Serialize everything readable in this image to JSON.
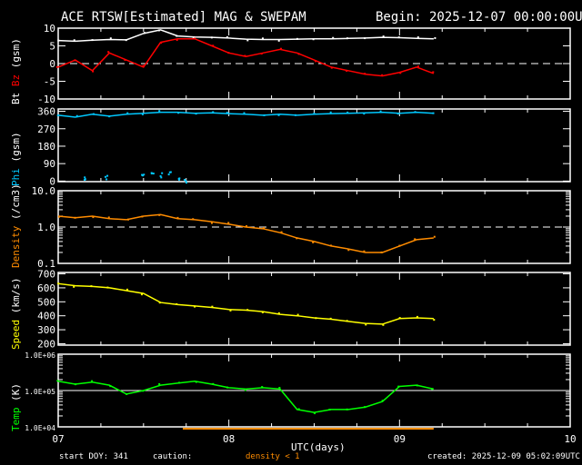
{
  "header": {
    "title": "ACE RTSW[Estimated] MAG & SWEPAM",
    "begin": "Begin: 2025-12-07 00:00:00UTC"
  },
  "footer": {
    "start_doy": "start DOY: 341",
    "caution": "caution:",
    "density_note": "density < 1",
    "created": "created: 2025-12-09 05:02:09UTC",
    "xlabel": "UTC(days)"
  },
  "colors": {
    "bt": "#ffffff",
    "bz": "#ff0000",
    "phi": "#00c8ff",
    "density": "#ff8c00",
    "speed": "#ffff00",
    "temp": "#00ff00",
    "frame": "#ffffff"
  },
  "chart_data": [
    {
      "type": "scatter",
      "ylabel_parts": [
        {
          "text": "Bt",
          "color": "#ffffff"
        },
        {
          "text": "Bz",
          "color": "#ff0000"
        },
        {
          "text": "(gsm)",
          "color": "#ffffff"
        }
      ],
      "ylim": [
        -10,
        10
      ],
      "yticks": [
        "10",
        "5",
        "0",
        "-5",
        "-10"
      ],
      "ytick_values": [
        10,
        5,
        0,
        -5,
        -10
      ],
      "ref_line": 0,
      "ref_style": "dashed",
      "x": [
        7.0,
        7.1,
        7.2,
        7.3,
        7.4,
        7.5,
        7.6,
        7.7,
        7.8,
        7.9,
        8.0,
        8.1,
        8.2,
        8.3,
        8.4,
        8.5,
        8.6,
        8.7,
        8.8,
        8.9,
        9.0,
        9.1,
        9.2
      ],
      "series": [
        {
          "name": "Bt",
          "color": "#ffffff",
          "values": [
            6.5,
            6.3,
            6.6,
            6.8,
            6.7,
            8.5,
            9.5,
            7.8,
            7.5,
            7.4,
            7.2,
            6.9,
            6.8,
            6.8,
            6.9,
            7.0,
            7.0,
            7.1,
            7.2,
            7.4,
            7.3,
            7.1,
            7.0
          ]
        },
        {
          "name": "Bz",
          "color": "#ff0000",
          "values": [
            -1,
            1,
            -2,
            3,
            1,
            -1,
            6,
            7,
            7,
            5,
            3,
            2,
            3,
            4,
            3,
            1,
            -1,
            -2,
            -3,
            -3.5,
            -2.5,
            -1,
            -2.8
          ]
        }
      ]
    },
    {
      "type": "scatter",
      "ylabel_parts": [
        {
          "text": "Phi",
          "color": "#00c8ff"
        },
        {
          "text": "(gsm)",
          "color": "#ffffff"
        }
      ],
      "ylim": [
        -3,
        372
      ],
      "yticks": [
        "360",
        "270",
        "180",
        "90",
        "0"
      ],
      "ytick_values": [
        360,
        270,
        180,
        90,
        0
      ],
      "x": [
        7.0,
        7.1,
        7.2,
        7.3,
        7.4,
        7.5,
        7.6,
        7.7,
        7.8,
        7.9,
        8.0,
        8.1,
        8.2,
        8.3,
        8.4,
        8.5,
        8.6,
        8.7,
        8.8,
        8.9,
        9.0,
        9.1,
        9.2
      ],
      "series": [
        {
          "name": "Phi",
          "color": "#00c8ff",
          "values": [
            340,
            330,
            345,
            335,
            345,
            350,
            355,
            355,
            350,
            352,
            348,
            345,
            340,
            345,
            340,
            345,
            348,
            350,
            352,
            355,
            350,
            355,
            350
          ]
        },
        {
          "name": "Phi-low",
          "color": "#00c8ff",
          "x": [
            7.15,
            7.28,
            7.5,
            7.55,
            7.6,
            7.65,
            7.7,
            7.75
          ],
          "values": [
            5,
            15,
            20,
            40,
            30,
            45,
            15,
            5
          ]
        }
      ]
    },
    {
      "type": "scatter",
      "scale": "log",
      "ylabel_parts": [
        {
          "text": "Density",
          "color": "#ff8c00"
        },
        {
          "text": "(/cm3)",
          "color": "#ffffff"
        }
      ],
      "ylim": [
        0.1,
        10
      ],
      "yticks": [
        "10.0",
        "1.0",
        "0.1"
      ],
      "ytick_values": [
        10,
        1,
        0.1
      ],
      "ref_line": 1,
      "ref_style": "dashed",
      "x": [
        7.0,
        7.1,
        7.2,
        7.3,
        7.4,
        7.5,
        7.6,
        7.7,
        7.8,
        7.9,
        8.0,
        8.1,
        8.2,
        8.3,
        8.4,
        8.5,
        8.6,
        8.7,
        8.8,
        8.9,
        9.0,
        9.1,
        9.2
      ],
      "series": [
        {
          "name": "Density",
          "color": "#ff8c00",
          "values": [
            2,
            1.8,
            2,
            1.7,
            1.6,
            2,
            2.2,
            1.7,
            1.6,
            1.4,
            1.2,
            1.0,
            0.9,
            0.7,
            0.5,
            0.4,
            0.3,
            0.25,
            0.2,
            0.2,
            0.3,
            0.45,
            0.5
          ]
        }
      ]
    },
    {
      "type": "scatter",
      "ylabel_parts": [
        {
          "text": "Speed",
          "color": "#ffff00"
        },
        {
          "text": "(km/s)",
          "color": "#ffffff"
        }
      ],
      "ylim": [
        190,
        710
      ],
      "yticks": [
        "700",
        "600",
        "500",
        "400",
        "300",
        "200"
      ],
      "ytick_values": [
        700,
        600,
        500,
        400,
        300,
        200
      ],
      "x": [
        7.0,
        7.1,
        7.2,
        7.3,
        7.4,
        7.5,
        7.6,
        7.7,
        7.8,
        7.9,
        8.0,
        8.1,
        8.2,
        8.3,
        8.4,
        8.5,
        8.6,
        8.7,
        8.8,
        8.9,
        9.0,
        9.1,
        9.2
      ],
      "series": [
        {
          "name": "Speed",
          "color": "#ffff00",
          "values": [
            630,
            615,
            610,
            600,
            580,
            560,
            495,
            480,
            470,
            460,
            445,
            440,
            430,
            410,
            400,
            385,
            375,
            360,
            345,
            340,
            380,
            385,
            380
          ]
        }
      ]
    },
    {
      "type": "scatter",
      "scale": "log",
      "ylabel_parts": [
        {
          "text": "Temp",
          "color": "#00ff00"
        },
        {
          "text": "(K)",
          "color": "#ffffff"
        }
      ],
      "ylim": [
        10000,
        1000000
      ],
      "yticks": [
        "1.0E+06",
        "1.0E+05",
        "1.0E+04"
      ],
      "ytick_values": [
        1000000,
        100000,
        10000
      ],
      "ref_line": 100000,
      "ref_style": "solid",
      "x": [
        7.0,
        7.1,
        7.2,
        7.3,
        7.4,
        7.5,
        7.6,
        7.7,
        7.8,
        7.9,
        8.0,
        8.1,
        8.2,
        8.3,
        8.4,
        8.5,
        8.6,
        8.7,
        8.8,
        8.9,
        9.0,
        9.1,
        9.2
      ],
      "series": [
        {
          "name": "Temp",
          "color": "#00ff00",
          "values": [
            180000,
            150000,
            170000,
            140000,
            80000,
            100000,
            140000,
            160000,
            180000,
            150000,
            120000,
            110000,
            120000,
            110000,
            30000,
            25000,
            30000,
            30000,
            35000,
            50000,
            130000,
            140000,
            110000
          ]
        }
      ]
    }
  ],
  "xaxis": {
    "xlim": [
      7,
      10
    ],
    "ticks": [
      "07",
      "08",
      "09",
      "10"
    ],
    "tick_values": [
      7,
      8,
      9,
      10
    ]
  }
}
